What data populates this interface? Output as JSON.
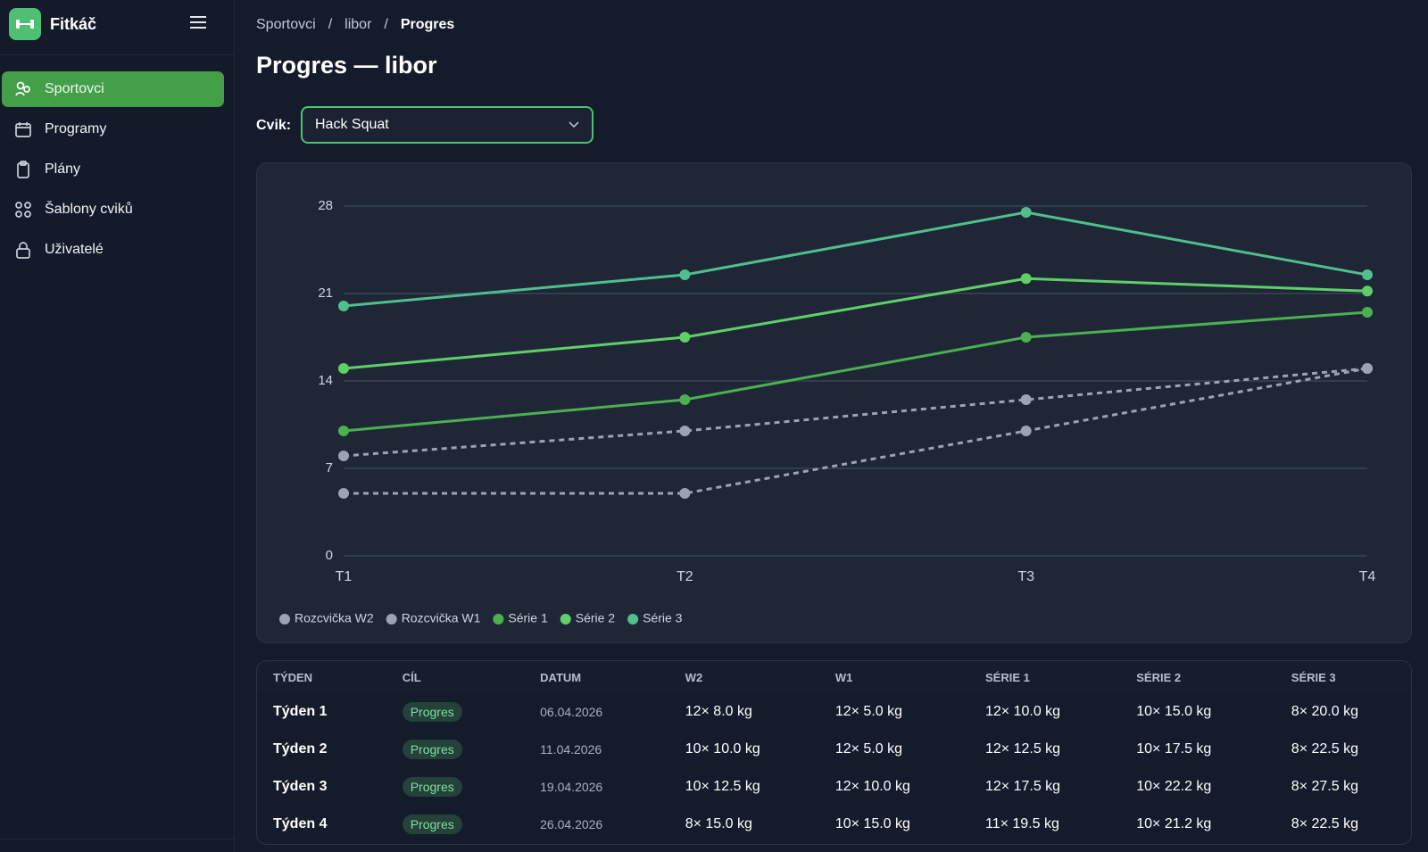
{
  "brand": "Fitkáč",
  "nav": [
    "Sportovci",
    "Programy",
    "Plány",
    "Šablony cviků",
    "Uživatelé"
  ],
  "breadcrumb": [
    "Sportovci",
    "/",
    "libor",
    "/",
    "Progres"
  ],
  "page_title": "Progres — libor",
  "exercise_label": "Cvik:",
  "exercise": "Hack Squat",
  "chart_data": {
    "type": "line",
    "categories": [
      "T1",
      "T2",
      "T3",
      "T4"
    ],
    "ylim": [
      0,
      28
    ],
    "yticks": [
      0,
      7,
      14,
      21,
      28
    ],
    "grid": true,
    "legend": "bottom-left",
    "series": [
      {
        "name": "Rozcvička W2",
        "color": "#9ca3b4",
        "dashed": true,
        "values": [
          8,
          10,
          12.5,
          15
        ]
      },
      {
        "name": "Rozcvička W1",
        "color": "#9ca3b4",
        "dashed": true,
        "values": [
          5,
          5,
          10,
          15
        ]
      },
      {
        "name": "Série 1",
        "color": "#4caf50",
        "dashed": false,
        "values": [
          10,
          12.5,
          17.5,
          19.5
        ]
      },
      {
        "name": "Série 2",
        "color": "#5fd068",
        "dashed": false,
        "values": [
          15,
          17.5,
          22.2,
          21.2
        ]
      },
      {
        "name": "Série 3",
        "color": "#4fc08d",
        "dashed": false,
        "values": [
          20,
          22.5,
          27.5,
          22.5
        ]
      }
    ]
  },
  "table": {
    "columns": [
      "TÝDEN",
      "CÍL",
      "DATUM",
      "W2",
      "W1",
      "SÉRIE 1",
      "SÉRIE 2",
      "SÉRIE 3"
    ],
    "rows": [
      [
        "Týden 1",
        "Progres",
        "06.04.2026",
        "12× 8.0 kg",
        "12× 5.0 kg",
        "12× 10.0 kg",
        "10× 15.0 kg",
        "8× 20.0 kg"
      ],
      [
        "Týden 2",
        "Progres",
        "11.04.2026",
        "10× 10.0 kg",
        "12× 5.0 kg",
        "12× 12.5 kg",
        "10× 17.5 kg",
        "8× 22.5 kg"
      ],
      [
        "Týden 3",
        "Progres",
        "19.04.2026",
        "10× 12.5 kg",
        "12× 10.0 kg",
        "12× 17.5 kg",
        "10× 22.2 kg",
        "8× 27.5 kg"
      ],
      [
        "Týden 4",
        "Progres",
        "26.04.2026",
        "8× 15.0 kg",
        "10× 15.0 kg",
        "11× 19.5 kg",
        "10× 21.2 kg",
        "8× 22.5 kg"
      ]
    ]
  }
}
